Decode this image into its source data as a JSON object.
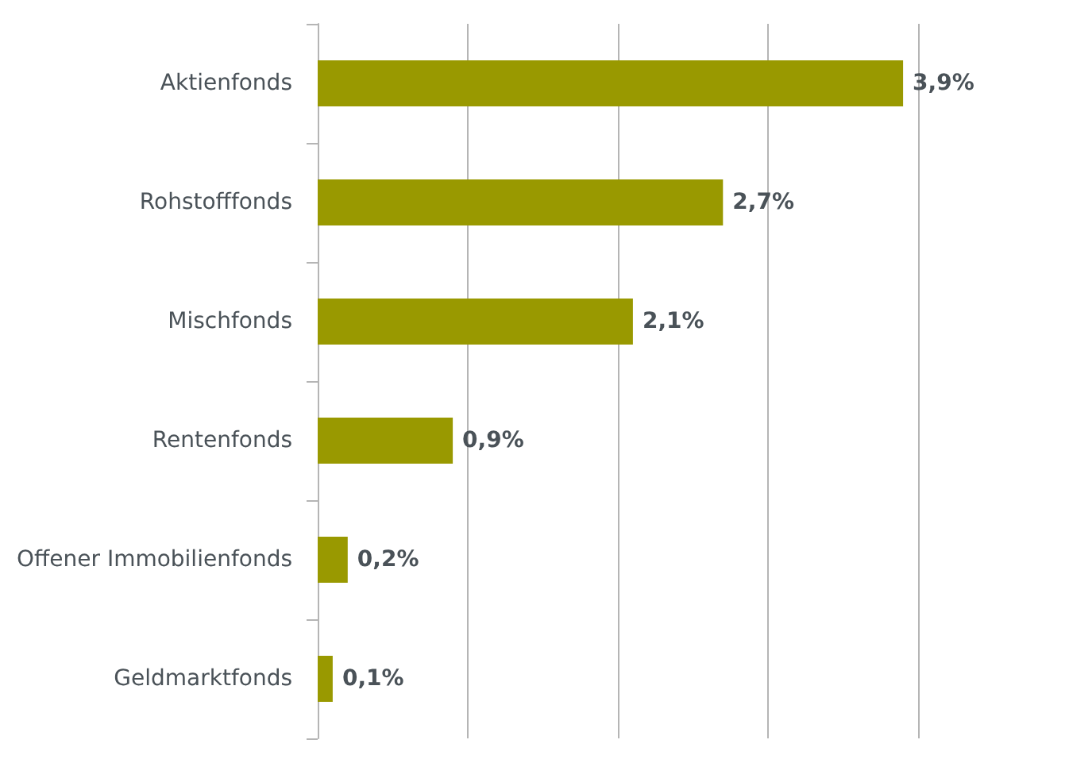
{
  "chart_data": {
    "type": "bar",
    "orientation": "horizontal",
    "categories": [
      "Aktienfonds",
      "Rohstofffonds",
      "Mischfonds",
      "Rentenfonds",
      "Offener Immobilienfonds",
      "Geldmarktfonds"
    ],
    "values": [
      3.9,
      2.7,
      2.1,
      0.9,
      0.2,
      0.1
    ],
    "value_labels": [
      "3,9%",
      "2,7%",
      "2,1%",
      "0,9%",
      "0,2%",
      "0,1%"
    ],
    "color": "#999900",
    "xlim": [
      0,
      4
    ],
    "xticks": [
      {
        "value": 0,
        "label": null
      },
      {
        "value": 1,
        "label": null
      },
      {
        "value": 2,
        "label": null
      },
      {
        "value": 3,
        "label": null
      },
      {
        "value": 4,
        "label": null
      }
    ],
    "grid": "x",
    "tick_labels": "y"
  }
}
